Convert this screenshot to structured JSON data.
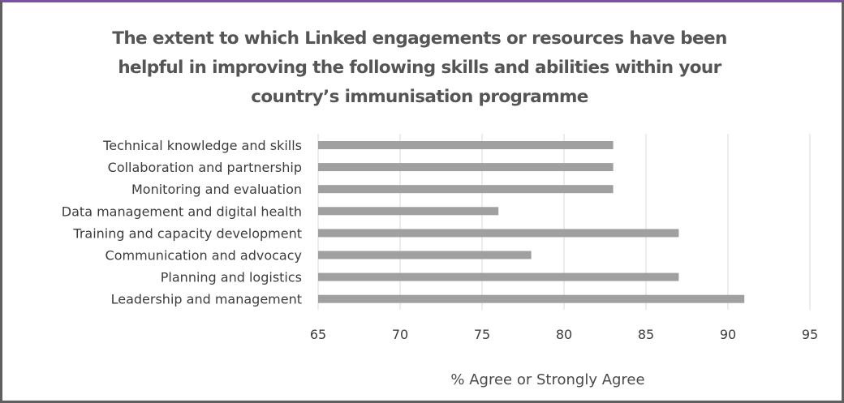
{
  "chart_data": {
    "type": "bar",
    "orientation": "horizontal",
    "title": "The extent to which Linked engagements or resources have been helpful in improving the following skills and abilities within your country’s immunisation programme",
    "title_lines": [
      "The extent to which Linked engagements or resources have been",
      "helpful in improving the following skills and abilities within your",
      "country’s immunisation programme"
    ],
    "categories": [
      "Technical knowledge and skills",
      "Collaboration and partnership",
      "Monitoring and evaluation",
      "Data management and digital health",
      "Training and capacity development",
      "Communication and advocacy",
      "Planning and logistics",
      "Leadership and management"
    ],
    "values": [
      83,
      83,
      83,
      76,
      87,
      78,
      87,
      91
    ],
    "xlabel": "% Agree or Strongly Agree",
    "ylabel": "",
    "xlim": [
      65,
      95
    ],
    "xticks": [
      65,
      70,
      75,
      80,
      85,
      90,
      95
    ],
    "grid": true,
    "legend": "none",
    "bar_color": "#a0a0a0",
    "grid_color": "#d9d9d9"
  }
}
